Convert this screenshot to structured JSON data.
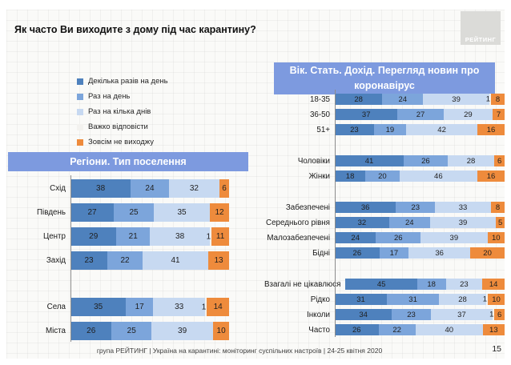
{
  "slide": {
    "title": "Як часто Ви виходите з дому під час карантину?",
    "logo_text": "РЕЙТИНГ",
    "footer": {
      "source": "група РЕЙТИНГ | Україна на карантині: моніторинг суспільних настроїв  | 24-25 квітня  2020",
      "page_number": "15"
    }
  },
  "colors": {
    "header_blue": "#7d9adf",
    "logo_gray": "#dbdbd8",
    "series": [
      "#4e81bd",
      "#7ca5db",
      "#c7d9f1",
      "#f3f2ef",
      "#ee8b3c"
    ]
  },
  "legend": {
    "items": [
      {
        "key": "several-times-a-day",
        "label": "Декілька разів на день"
      },
      {
        "key": "once-a-day",
        "label": "Раз на день"
      },
      {
        "key": "once-every-few-days",
        "label": "Раз на кілька днів"
      },
      {
        "key": "hard-to-answer",
        "label": "Важко відповісти"
      },
      {
        "key": "dont-go-out-at-all",
        "label": "Зовсім не виходжу"
      }
    ]
  },
  "chart_data": [
    {
      "type": "bar",
      "orientation": "horizontal-stacked",
      "title": "Регіони. Тип поселення",
      "series_names": [
        "Декілька разів на день",
        "Раз на день",
        "Раз на кілька днів",
        "Важко відповісти",
        "Зовсім не виходжу"
      ],
      "value_unit": "percent",
      "xlim": [
        0,
        100
      ],
      "groups": [
        {
          "rows": [
            {
              "label": "Схід",
              "values": [
                38,
                24,
                32,
                0,
                6
              ]
            },
            {
              "label": "Південь",
              "values": [
                27,
                25,
                35,
                0,
                12
              ]
            },
            {
              "label": "Центр",
              "values": [
                29,
                21,
                38,
                1,
                11
              ]
            },
            {
              "label": "Захід",
              "values": [
                23,
                22,
                41,
                0,
                13
              ]
            }
          ]
        },
        {
          "rows": [
            {
              "label": "Села",
              "values": [
                35,
                17,
                33,
                1,
                14
              ]
            },
            {
              "label": "Міста",
              "values": [
                26,
                25,
                39,
                0,
                10
              ]
            }
          ]
        }
      ]
    },
    {
      "type": "bar",
      "orientation": "horizontal-stacked",
      "title": "Вік. Стать. Дохід. Перегляд новин про коронавірус",
      "series_names": [
        "Декілька разів на день",
        "Раз на день",
        "Раз на кілька днів",
        "Важко відповісти",
        "Зовсім не виходжу"
      ],
      "value_unit": "percent",
      "xlim": [
        0,
        100
      ],
      "groups": [
        {
          "rows": [
            {
              "label": "18-35",
              "values": [
                28,
                24,
                39,
                1,
                8
              ]
            },
            {
              "label": "36-50",
              "values": [
                37,
                27,
                29,
                0,
                7
              ]
            },
            {
              "label": "51+",
              "values": [
                23,
                19,
                42,
                0,
                16
              ]
            }
          ]
        },
        {
          "rows": [
            {
              "label": "Чоловіки",
              "values": [
                41,
                26,
                28,
                0,
                6
              ]
            },
            {
              "label": "Жінки",
              "values": [
                18,
                20,
                46,
                0,
                16
              ]
            }
          ]
        },
        {
          "rows": [
            {
              "label": "Забезпечені",
              "values": [
                36,
                23,
                33,
                0,
                8
              ]
            },
            {
              "label": "Середнього рівня",
              "values": [
                32,
                24,
                39,
                0,
                5
              ]
            },
            {
              "label": "Малозабезпечені",
              "values": [
                24,
                26,
                39,
                0,
                10
              ]
            },
            {
              "label": "Бідні",
              "values": [
                26,
                17,
                36,
                0,
                20
              ]
            }
          ]
        },
        {
          "rows": [
            {
              "label": "Взагалі не цікавлюся",
              "values": [
                45,
                18,
                23,
                0,
                14
              ]
            },
            {
              "label": "Рідко",
              "values": [
                31,
                31,
                28,
                1,
                10
              ]
            },
            {
              "label": "Інколи",
              "values": [
                34,
                23,
                37,
                1,
                6
              ]
            },
            {
              "label": "Часто",
              "values": [
                26,
                22,
                40,
                0,
                13
              ]
            }
          ]
        }
      ]
    }
  ]
}
